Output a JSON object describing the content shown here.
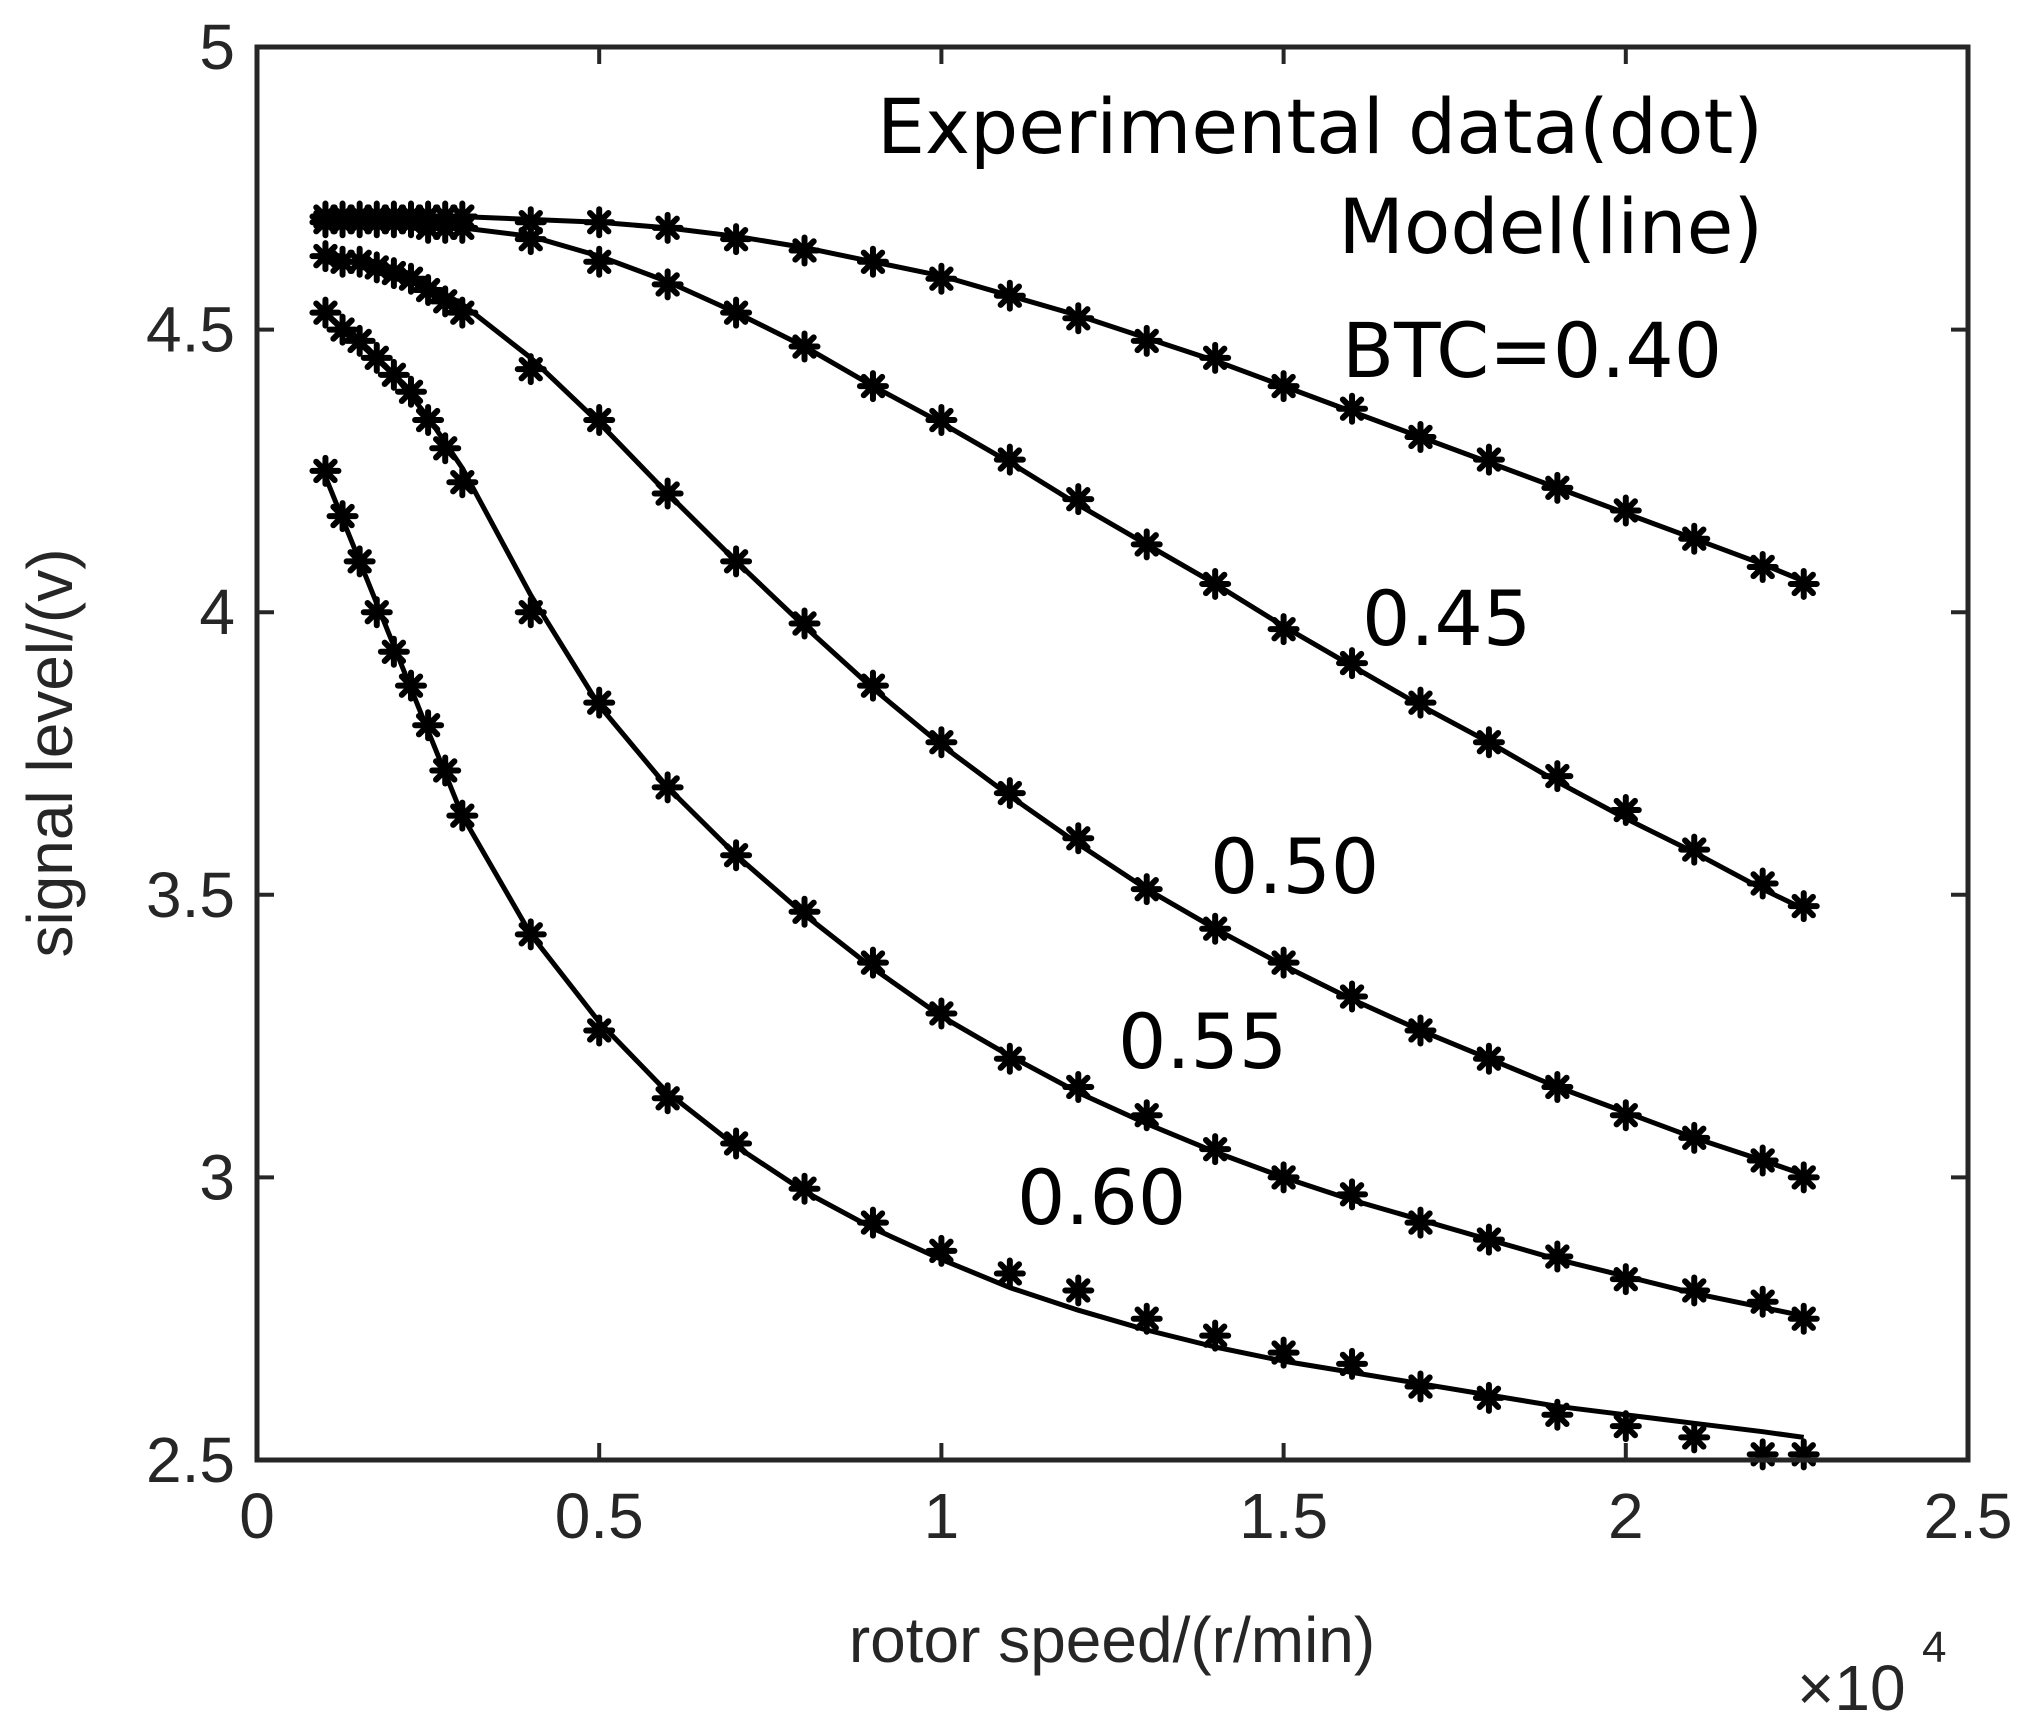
{
  "chart_data": {
    "type": "line",
    "title": "",
    "xlabel": "rotor speed/(r/min)",
    "ylabel": "signal level/(v)",
    "x_multiplier_label": {
      "base": "×10",
      "exponent": "4"
    },
    "xlim": [
      0,
      25000
    ],
    "ylim": [
      2.5,
      5
    ],
    "xticks": [
      0,
      5000,
      10000,
      15000,
      20000,
      25000
    ],
    "xtick_labels": [
      "0",
      "0.5",
      "1",
      "1.5",
      "2",
      "2.5"
    ],
    "yticks": [
      2.5,
      3,
      3.5,
      4,
      4.5,
      5
    ],
    "ytick_labels": [
      "2.5",
      "3",
      "3.5",
      "4",
      "4.5",
      "5"
    ],
    "grid": false,
    "legend_text": [
      "Experimental data(dot)",
      "Model(line)"
    ],
    "markers": "asterisk (experimental data)",
    "series": [
      {
        "name": "BTC=0.40",
        "label": "BTC=0.40",
        "dots": [
          [
            1000,
            4.7
          ],
          [
            1250,
            4.7
          ],
          [
            1500,
            4.7
          ],
          [
            1750,
            4.7
          ],
          [
            2000,
            4.7
          ],
          [
            2250,
            4.7
          ],
          [
            2500,
            4.7
          ],
          [
            2750,
            4.7
          ],
          [
            3000,
            4.7
          ],
          [
            4000,
            4.69
          ],
          [
            5000,
            4.69
          ],
          [
            6000,
            4.68
          ],
          [
            7000,
            4.66
          ],
          [
            8000,
            4.64
          ],
          [
            9000,
            4.62
          ],
          [
            10000,
            4.59
          ],
          [
            11000,
            4.56
          ],
          [
            12000,
            4.52
          ],
          [
            13000,
            4.48
          ],
          [
            14000,
            4.45
          ],
          [
            15000,
            4.4
          ],
          [
            16000,
            4.36
          ],
          [
            17000,
            4.31
          ],
          [
            18000,
            4.27
          ],
          [
            19000,
            4.22
          ],
          [
            20000,
            4.18
          ],
          [
            21000,
            4.13
          ],
          [
            22000,
            4.08
          ],
          [
            22600,
            4.05
          ]
        ],
        "line": [
          [
            1000,
            4.7
          ],
          [
            3000,
            4.7
          ],
          [
            5000,
            4.69
          ],
          [
            6000,
            4.68
          ],
          [
            7000,
            4.665
          ],
          [
            8000,
            4.645
          ],
          [
            9000,
            4.62
          ],
          [
            10000,
            4.595
          ],
          [
            11000,
            4.56
          ],
          [
            12000,
            4.525
          ],
          [
            13000,
            4.485
          ],
          [
            14000,
            4.445
          ],
          [
            15000,
            4.4
          ],
          [
            16000,
            4.355
          ],
          [
            17000,
            4.31
          ],
          [
            18000,
            4.265
          ],
          [
            19000,
            4.22
          ],
          [
            20000,
            4.175
          ],
          [
            21000,
            4.13
          ],
          [
            22000,
            4.085
          ],
          [
            22600,
            4.055
          ]
        ]
      },
      {
        "name": "BTC=0.45",
        "label": "0.45",
        "dots": [
          [
            1000,
            4.69
          ],
          [
            1250,
            4.69
          ],
          [
            1500,
            4.69
          ],
          [
            1750,
            4.69
          ],
          [
            2000,
            4.69
          ],
          [
            2250,
            4.69
          ],
          [
            2500,
            4.68
          ],
          [
            2750,
            4.68
          ],
          [
            3000,
            4.68
          ],
          [
            4000,
            4.66
          ],
          [
            5000,
            4.62
          ],
          [
            6000,
            4.58
          ],
          [
            7000,
            4.53
          ],
          [
            8000,
            4.47
          ],
          [
            9000,
            4.4
          ],
          [
            10000,
            4.34
          ],
          [
            11000,
            4.27
          ],
          [
            12000,
            4.2
          ],
          [
            13000,
            4.12
          ],
          [
            14000,
            4.05
          ],
          [
            15000,
            3.97
          ],
          [
            16000,
            3.91
          ],
          [
            17000,
            3.84
          ],
          [
            18000,
            3.77
          ],
          [
            19000,
            3.71
          ],
          [
            20000,
            3.65
          ],
          [
            21000,
            3.58
          ],
          [
            22000,
            3.52
          ],
          [
            22600,
            3.48
          ]
        ],
        "line": [
          [
            1000,
            4.695
          ],
          [
            2000,
            4.69
          ],
          [
            3000,
            4.68
          ],
          [
            4000,
            4.665
          ],
          [
            5000,
            4.63
          ],
          [
            6000,
            4.585
          ],
          [
            7000,
            4.53
          ],
          [
            8000,
            4.47
          ],
          [
            9000,
            4.4
          ],
          [
            10000,
            4.335
          ],
          [
            11000,
            4.265
          ],
          [
            12000,
            4.19
          ],
          [
            13000,
            4.12
          ],
          [
            14000,
            4.05
          ],
          [
            15000,
            3.975
          ],
          [
            16000,
            3.905
          ],
          [
            17000,
            3.835
          ],
          [
            18000,
            3.77
          ],
          [
            19000,
            3.7
          ],
          [
            20000,
            3.635
          ],
          [
            21000,
            3.575
          ],
          [
            22000,
            3.51
          ],
          [
            22600,
            3.475
          ]
        ]
      },
      {
        "name": "BTC=0.50",
        "label": "0.50",
        "dots": [
          [
            1000,
            4.63
          ],
          [
            1250,
            4.62
          ],
          [
            1500,
            4.62
          ],
          [
            1750,
            4.61
          ],
          [
            2000,
            4.6
          ],
          [
            2250,
            4.59
          ],
          [
            2500,
            4.57
          ],
          [
            2750,
            4.55
          ],
          [
            3000,
            4.53
          ],
          [
            4000,
            4.43
          ],
          [
            5000,
            4.34
          ],
          [
            6000,
            4.21
          ],
          [
            7000,
            4.09
          ],
          [
            8000,
            3.98
          ],
          [
            9000,
            3.87
          ],
          [
            10000,
            3.77
          ],
          [
            11000,
            3.68
          ],
          [
            12000,
            3.6
          ],
          [
            13000,
            3.51
          ],
          [
            14000,
            3.44
          ],
          [
            15000,
            3.38
          ],
          [
            16000,
            3.32
          ],
          [
            17000,
            3.26
          ],
          [
            18000,
            3.21
          ],
          [
            19000,
            3.16
          ],
          [
            20000,
            3.11
          ],
          [
            21000,
            3.07
          ],
          [
            22000,
            3.03
          ],
          [
            22600,
            3.0
          ]
        ],
        "line": [
          [
            1000,
            4.63
          ],
          [
            2000,
            4.605
          ],
          [
            2500,
            4.58
          ],
          [
            3000,
            4.545
          ],
          [
            4000,
            4.45
          ],
          [
            5000,
            4.335
          ],
          [
            6000,
            4.21
          ],
          [
            7000,
            4.09
          ],
          [
            8000,
            3.975
          ],
          [
            9000,
            3.865
          ],
          [
            10000,
            3.765
          ],
          [
            11000,
            3.675
          ],
          [
            12000,
            3.59
          ],
          [
            13000,
            3.51
          ],
          [
            14000,
            3.44
          ],
          [
            15000,
            3.375
          ],
          [
            16000,
            3.315
          ],
          [
            17000,
            3.26
          ],
          [
            18000,
            3.21
          ],
          [
            19000,
            3.16
          ],
          [
            20000,
            3.115
          ],
          [
            21000,
            3.07
          ],
          [
            22000,
            3.03
          ],
          [
            22600,
            3.005
          ]
        ]
      },
      {
        "name": "BTC=0.55",
        "label": "0.55",
        "dots": [
          [
            1000,
            4.53
          ],
          [
            1250,
            4.5
          ],
          [
            1500,
            4.48
          ],
          [
            1750,
            4.45
          ],
          [
            2000,
            4.42
          ],
          [
            2250,
            4.39
          ],
          [
            2500,
            4.34
          ],
          [
            2750,
            4.29
          ],
          [
            3000,
            4.23
          ],
          [
            4000,
            4.0
          ],
          [
            5000,
            3.84
          ],
          [
            6000,
            3.69
          ],
          [
            7000,
            3.57
          ],
          [
            8000,
            3.47
          ],
          [
            9000,
            3.38
          ],
          [
            10000,
            3.29
          ],
          [
            11000,
            3.21
          ],
          [
            12000,
            3.16
          ],
          [
            13000,
            3.11
          ],
          [
            14000,
            3.05
          ],
          [
            15000,
            3.0
          ],
          [
            16000,
            2.97
          ],
          [
            17000,
            2.92
          ],
          [
            18000,
            2.89
          ],
          [
            19000,
            2.86
          ],
          [
            20000,
            2.82
          ],
          [
            21000,
            2.8
          ],
          [
            22000,
            2.78
          ],
          [
            22600,
            2.75
          ]
        ],
        "line": [
          [
            1000,
            4.53
          ],
          [
            1500,
            4.475
          ],
          [
            2000,
            4.42
          ],
          [
            2500,
            4.345
          ],
          [
            3000,
            4.255
          ],
          [
            4000,
            4.03
          ],
          [
            5000,
            3.835
          ],
          [
            6000,
            3.69
          ],
          [
            7000,
            3.57
          ],
          [
            8000,
            3.465
          ],
          [
            9000,
            3.37
          ],
          [
            10000,
            3.285
          ],
          [
            11000,
            3.215
          ],
          [
            12000,
            3.15
          ],
          [
            13000,
            3.095
          ],
          [
            14000,
            3.045
          ],
          [
            15000,
            3.0
          ],
          [
            16000,
            2.96
          ],
          [
            17000,
            2.925
          ],
          [
            18000,
            2.89
          ],
          [
            19000,
            2.855
          ],
          [
            20000,
            2.825
          ],
          [
            21000,
            2.795
          ],
          [
            22000,
            2.77
          ],
          [
            22600,
            2.755
          ]
        ]
      },
      {
        "name": "BTC=0.60",
        "label": "0.60",
        "dots": [
          [
            1000,
            4.25
          ],
          [
            1250,
            4.17
          ],
          [
            1500,
            4.09
          ],
          [
            1750,
            4.0
          ],
          [
            2000,
            3.93
          ],
          [
            2250,
            3.87
          ],
          [
            2500,
            3.8
          ],
          [
            2750,
            3.72
          ],
          [
            3000,
            3.64
          ],
          [
            4000,
            3.43
          ],
          [
            5000,
            3.26
          ],
          [
            6000,
            3.14
          ],
          [
            7000,
            3.06
          ],
          [
            8000,
            2.98
          ],
          [
            9000,
            2.92
          ],
          [
            10000,
            2.87
          ],
          [
            11000,
            2.83
          ],
          [
            12000,
            2.8
          ],
          [
            13000,
            2.75
          ],
          [
            14000,
            2.72
          ],
          [
            15000,
            2.69
          ],
          [
            16000,
            2.67
          ],
          [
            17000,
            2.63
          ],
          [
            18000,
            2.61
          ],
          [
            19000,
            2.58
          ],
          [
            20000,
            2.56
          ],
          [
            21000,
            2.54
          ],
          [
            22000,
            2.51
          ],
          [
            22600,
            2.51
          ]
        ],
        "line": [
          [
            1000,
            4.24
          ],
          [
            1500,
            4.09
          ],
          [
            2000,
            3.94
          ],
          [
            2500,
            3.79
          ],
          [
            3000,
            3.64
          ],
          [
            4000,
            3.43
          ],
          [
            5000,
            3.275
          ],
          [
            6000,
            3.15
          ],
          [
            7000,
            3.055
          ],
          [
            8000,
            2.975
          ],
          [
            9000,
            2.91
          ],
          [
            10000,
            2.855
          ],
          [
            11000,
            2.805
          ],
          [
            12000,
            2.765
          ],
          [
            13000,
            2.73
          ],
          [
            14000,
            2.7
          ],
          [
            15000,
            2.675
          ],
          [
            16000,
            2.655
          ],
          [
            17000,
            2.635
          ],
          [
            18000,
            2.615
          ],
          [
            19000,
            2.595
          ],
          [
            20000,
            2.58
          ],
          [
            21000,
            2.565
          ],
          [
            22000,
            2.55
          ],
          [
            22600,
            2.54
          ]
        ]
      }
    ]
  }
}
